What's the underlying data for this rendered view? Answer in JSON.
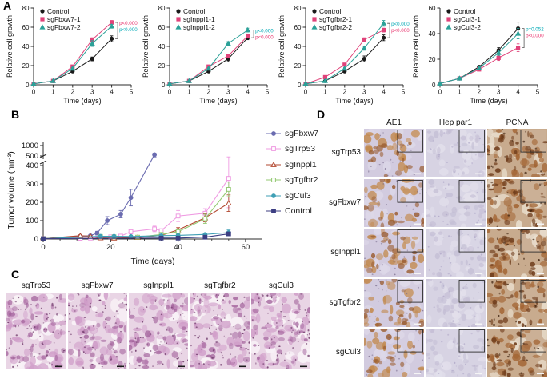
{
  "panels": {
    "a": {
      "label": "A"
    },
    "b": {
      "label": "B"
    },
    "c": {
      "label": "C",
      "columns": [
        "sgTrp53",
        "sgFbxw7",
        "sgInppl1",
        "sgTgfbr2",
        "sgCul3"
      ]
    },
    "d": {
      "label": "D",
      "columns": [
        "AE1",
        "Hep par1",
        "PCNA"
      ],
      "column_types": [
        "ihc_brown",
        "ihc_pale",
        "ihc_dark"
      ],
      "rows": [
        "sgTrp53",
        "sgFbxw7",
        "sgInppl1",
        "sgTgfbr2",
        "sgCul3"
      ]
    }
  },
  "chart_data": [
    {
      "type": "line",
      "panel": "A1",
      "xlabel": "Time (days)",
      "ylabel": "Relative cell growth",
      "x": [
        0,
        1,
        2,
        3,
        4
      ],
      "xlim": [
        0,
        5
      ],
      "xticks": [
        0,
        1,
        2,
        3,
        4,
        5
      ],
      "ylim": [
        0,
        80
      ],
      "yticks": [
        0,
        20,
        40,
        60,
        80
      ],
      "series": [
        {
          "name": "Control",
          "color": "#1a1a1a",
          "marker": "circle",
          "values": [
            1,
            4,
            14,
            27,
            48
          ],
          "err": [
            1,
            1,
            1,
            2,
            3
          ]
        },
        {
          "name": "sgFbxw7-1",
          "color": "#e0437a",
          "marker": "square",
          "values": [
            1,
            4,
            19,
            47,
            65
          ],
          "err": [
            1,
            1,
            1,
            2,
            2
          ]
        },
        {
          "name": "sgFbxw7-2",
          "color": "#2ba198",
          "marker": "triangle",
          "values": [
            1,
            4,
            17,
            43,
            61
          ],
          "err": [
            1,
            1,
            1,
            3,
            2
          ]
        }
      ],
      "annotations": [
        {
          "text": "p<0.0001",
          "color": "#e8336d"
        },
        {
          "text": "p<0.0001",
          "color": "#00a9b5"
        }
      ]
    },
    {
      "type": "line",
      "panel": "A2",
      "xlabel": "Time (days)",
      "ylabel": "Relative cell growth",
      "x": [
        0,
        1,
        2,
        3,
        4
      ],
      "xlim": [
        0,
        5
      ],
      "xticks": [
        0,
        1,
        2,
        3,
        4,
        5
      ],
      "ylim": [
        0,
        80
      ],
      "yticks": [
        0,
        20,
        40,
        60,
        80
      ],
      "series": [
        {
          "name": "Control",
          "color": "#1a1a1a",
          "marker": "circle",
          "values": [
            1,
            4,
            14,
            27,
            49
          ],
          "err": [
            1,
            1,
            1,
            3,
            2
          ]
        },
        {
          "name": "sgInppl1-1",
          "color": "#e0437a",
          "marker": "square",
          "values": [
            1,
            4,
            19,
            30,
            51
          ],
          "err": [
            1,
            1,
            1,
            2,
            2
          ]
        },
        {
          "name": "sgInppl1-2",
          "color": "#2ba198",
          "marker": "triangle",
          "values": [
            1,
            4,
            17,
            43,
            57
          ],
          "err": [
            1,
            1,
            1,
            2,
            2
          ]
        }
      ],
      "annotations": [
        {
          "text": "p<0.0001",
          "color": "#00a9b5"
        },
        {
          "text": "p<0.0001",
          "color": "#e8336d"
        }
      ]
    },
    {
      "type": "line",
      "panel": "A3",
      "xlabel": "Time (days)",
      "ylabel": "Relative cell growth",
      "x": [
        0,
        1,
        2,
        3,
        4
      ],
      "xlim": [
        0,
        5
      ],
      "xticks": [
        0,
        1,
        2,
        3,
        4,
        5
      ],
      "ylim": [
        0,
        80
      ],
      "yticks": [
        0,
        20,
        40,
        60,
        80
      ],
      "series": [
        {
          "name": "Control",
          "color": "#1a1a1a",
          "marker": "circle",
          "values": [
            1,
            4,
            14,
            27,
            49
          ],
          "err": [
            1,
            1,
            1,
            3,
            3
          ]
        },
        {
          "name": "sgTgfbr2-1",
          "color": "#e0437a",
          "marker": "square",
          "values": [
            1,
            8,
            21,
            47,
            57
          ],
          "err": [
            1,
            1,
            1,
            2,
            2
          ]
        },
        {
          "name": "sgTgfbr2-2",
          "color": "#2ba198",
          "marker": "triangle",
          "values": [
            1,
            4,
            17,
            38,
            64
          ],
          "err": [
            1,
            1,
            1,
            2,
            3
          ]
        }
      ],
      "annotations": [
        {
          "text": "p<0.0001",
          "color": "#00a9b5"
        },
        {
          "text": "p<0.0001",
          "color": "#e8336d"
        }
      ]
    },
    {
      "type": "line",
      "panel": "A4",
      "xlabel": "Time (days)",
      "ylabel": "Relative cell growth",
      "x": [
        0,
        1,
        2,
        3,
        4
      ],
      "xlim": [
        0,
        5
      ],
      "xticks": [
        0,
        1,
        2,
        3,
        4,
        5
      ],
      "ylim": [
        0,
        60
      ],
      "yticks": [
        0,
        20,
        40,
        60
      ],
      "series": [
        {
          "name": "Control",
          "color": "#1a1a1a",
          "marker": "circle",
          "values": [
            1,
            5,
            14,
            27,
            44
          ],
          "err": [
            1,
            1,
            1,
            2,
            5
          ]
        },
        {
          "name": "sgCul3-1",
          "color": "#e0437a",
          "marker": "square",
          "values": [
            1,
            5,
            12,
            21,
            29
          ],
          "err": [
            1,
            1,
            1,
            2,
            3
          ]
        },
        {
          "name": "sgCul3-2",
          "color": "#2ba198",
          "marker": "triangle",
          "values": [
            1,
            5,
            13,
            25,
            40
          ],
          "err": [
            1,
            1,
            1,
            2,
            4
          ]
        }
      ],
      "annotations": [
        {
          "text": "p=0.052",
          "color": "#00a9b5"
        },
        {
          "text": "p<0.0001",
          "color": "#e8336d"
        }
      ]
    },
    {
      "type": "line",
      "panel": "B",
      "xlabel": "Time (days)",
      "ylabel": "Tumor volume (mm³)",
      "xlim": [
        0,
        65
      ],
      "xticks": [
        0,
        20,
        40,
        60
      ],
      "y_axis_break": {
        "lower_range": [
          0,
          400
        ],
        "upper_range": [
          500,
          1000
        ],
        "yticks_lower": [
          0,
          100,
          200,
          300,
          400
        ],
        "yticks_upper": [
          500,
          1000
        ]
      },
      "legend_position": "right",
      "series": [
        {
          "name": "sgFbxw7",
          "color": "#6b6cb0",
          "marker": "circle",
          "fill": true,
          "x": [
            0,
            11,
            14,
            16,
            19,
            23,
            26,
            33
          ],
          "y": [
            2,
            15,
            18,
            32,
            100,
            135,
            225,
            560
          ],
          "err": [
            0,
            6,
            6,
            10,
            22,
            20,
            45,
            70
          ]
        },
        {
          "name": "sgTrp53",
          "color": "#ef9be2",
          "marker": "square",
          "fill": false,
          "x": [
            0,
            11,
            14,
            17,
            20,
            23,
            26,
            33,
            35,
            40,
            48,
            55
          ],
          "y": [
            2,
            4,
            5,
            8,
            12,
            16,
            40,
            55,
            45,
            125,
            140,
            330
          ],
          "err": [
            0,
            2,
            2,
            3,
            4,
            6,
            12,
            15,
            10,
            30,
            25,
            160
          ]
        },
        {
          "name": "sgInppl1",
          "color": "#b2472f",
          "marker": "triangle",
          "fill": false,
          "x": [
            0,
            11,
            14,
            17,
            21,
            28,
            35,
            40,
            48,
            55
          ],
          "y": [
            2,
            18,
            15,
            6,
            5,
            8,
            20,
            50,
            115,
            195
          ],
          "err": [
            0,
            5,
            4,
            2,
            2,
            3,
            6,
            12,
            22,
            45
          ]
        },
        {
          "name": "sgTgfbr2",
          "color": "#94c973",
          "marker": "square",
          "fill": false,
          "x": [
            0,
            17,
            21,
            28,
            35,
            40,
            48,
            55
          ],
          "y": [
            2,
            14,
            12,
            10,
            25,
            40,
            110,
            270
          ],
          "err": [
            0,
            4,
            4,
            3,
            7,
            10,
            25,
            40
          ]
        },
        {
          "name": "sgCul3",
          "color": "#3f9fb5",
          "marker": "circle",
          "fill": true,
          "x": [
            0,
            17,
            21,
            26,
            35,
            40,
            48,
            55
          ],
          "y": [
            2,
            15,
            15,
            14,
            18,
            20,
            25,
            35
          ],
          "err": [
            0,
            4,
            4,
            4,
            4,
            5,
            6,
            14
          ]
        },
        {
          "name": "Control",
          "color": "#3c3e82",
          "marker": "square",
          "fill": true,
          "x": [
            0,
            35,
            40,
            48,
            55
          ],
          "y": [
            2,
            5,
            5,
            10,
            28
          ],
          "err": [
            0,
            2,
            2,
            4,
            8
          ]
        }
      ]
    }
  ],
  "textures": {
    "he": {
      "bg": "#e9d5e5",
      "scalebar": "#1a1a1a",
      "layers": [
        {
          "color": "#f8f1f6",
          "count": 16,
          "rmin": 3,
          "rmax": 9,
          "omin": 0.8,
          "omax": 1
        },
        {
          "color": "#cf9cc8",
          "count": 46,
          "rmin": 2,
          "rmax": 6.5,
          "omin": 0.45,
          "omax": 0.85
        },
        {
          "color": "#a2619b",
          "count": 34,
          "rmin": 1.5,
          "rmax": 4.5,
          "omin": 0.4,
          "omax": 0.8
        },
        {
          "color": "#6f3a6a",
          "count": 70,
          "rmin": 0.5,
          "rmax": 1.3,
          "omin": 0.5,
          "omax": 0.9
        }
      ]
    },
    "ihc_brown": {
      "bg": "#d2cbdf",
      "scalebar": "#f5f5f5",
      "layers": [
        {
          "color": "#ddd8e8",
          "count": 18,
          "rmin": 3,
          "rmax": 8,
          "omin": 0.6,
          "omax": 0.9
        },
        {
          "color": "#c28a50",
          "count": 36,
          "rmin": 2,
          "rmax": 6,
          "omin": 0.5,
          "omax": 0.9
        },
        {
          "color": "#9a5c30",
          "count": 26,
          "rmin": 1.5,
          "rmax": 4.5,
          "omin": 0.5,
          "omax": 0.9
        },
        {
          "color": "#6e6183",
          "count": 30,
          "rmin": 0.5,
          "rmax": 1.2,
          "omin": 0.4,
          "omax": 0.7
        }
      ]
    },
    "ihc_pale": {
      "bg": "#d7d3e3",
      "scalebar": "#f5f5f5",
      "layers": [
        {
          "color": "#e2dfeb",
          "count": 26,
          "rmin": 2.5,
          "rmax": 7,
          "omin": 0.6,
          "omax": 0.9
        },
        {
          "color": "#c3bdd4",
          "count": 40,
          "rmin": 1.5,
          "rmax": 4.5,
          "omin": 0.5,
          "omax": 0.8
        },
        {
          "color": "#a79ec2",
          "count": 36,
          "rmin": 0.5,
          "rmax": 1.3,
          "omin": 0.4,
          "omax": 0.7
        }
      ]
    },
    "ihc_dark": {
      "bg": "#c8ab8e",
      "scalebar": "#f5f5f5",
      "layers": [
        {
          "color": "#e8dccb",
          "count": 12,
          "rmin": 3,
          "rmax": 8,
          "omin": 0.7,
          "omax": 0.95
        },
        {
          "color": "#a26433",
          "count": 40,
          "rmin": 2,
          "rmax": 6,
          "omin": 0.55,
          "omax": 0.9
        },
        {
          "color": "#6f3d1c",
          "count": 40,
          "rmin": 1.2,
          "rmax": 4,
          "omin": 0.5,
          "omax": 0.9
        },
        {
          "color": "#3f2310",
          "count": 26,
          "rmin": 0.6,
          "rmax": 1.6,
          "omin": 0.5,
          "omax": 0.85
        }
      ]
    }
  }
}
